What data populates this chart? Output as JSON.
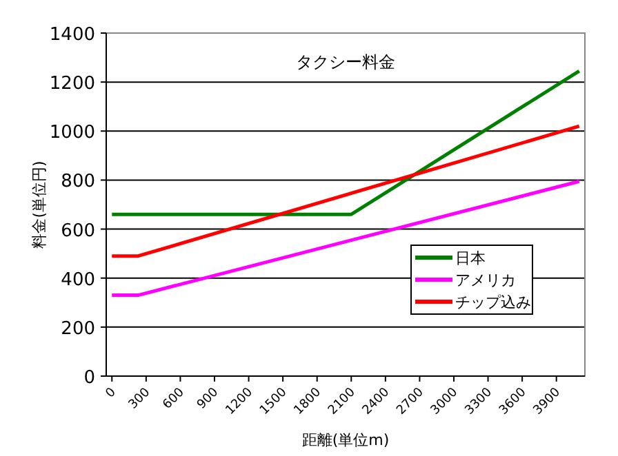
{
  "chart_data": {
    "type": "line",
    "title": "タクシー料金",
    "xlabel": "距離(単位m)",
    "ylabel": "料金(単位円)",
    "xlim": [
      -50,
      4150
    ],
    "xticks": [
      0,
      300,
      600,
      900,
      1200,
      1500,
      1800,
      2100,
      2400,
      2700,
      3000,
      3300,
      3600,
      3900
    ],
    "ylim": [
      0,
      1400
    ],
    "yticks": [
      0,
      200,
      400,
      600,
      800,
      1000,
      1200,
      1400
    ],
    "grid": "y",
    "legend": "right",
    "series": [
      {
        "name": "日本",
        "color": "#008000",
        "x": [
          0,
          2100,
          4100
        ],
        "values": [
          660,
          660,
          1245
        ]
      },
      {
        "name": "アメリカ",
        "color": "#ff00ff",
        "x": [
          0,
          230,
          4100
        ],
        "values": [
          330,
          330,
          795
        ]
      },
      {
        "name": "チップ込み",
        "color": "#ff0000",
        "x": [
          0,
          230,
          4100
        ],
        "values": [
          490,
          490,
          1020
        ]
      }
    ]
  }
}
